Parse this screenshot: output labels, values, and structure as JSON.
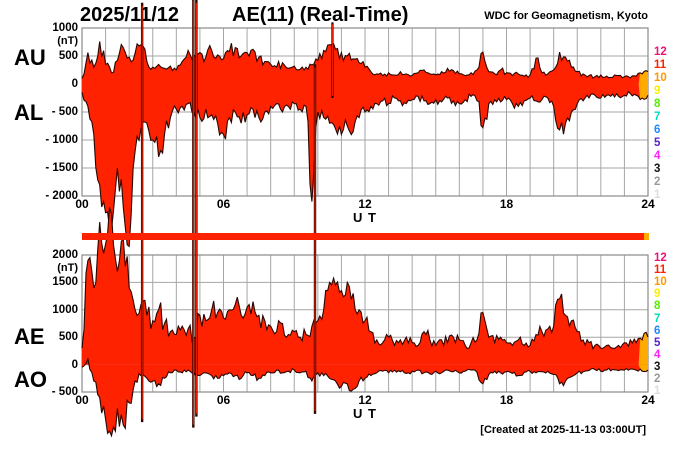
{
  "header": {
    "date": "2025/11/12",
    "title": "AE(11) (Real-Time)",
    "source": "WDC for Geomagnetism, Kyoto"
  },
  "footer": {
    "created": "[Created at 2025-11-13 03:00UT]"
  },
  "colors": {
    "trace_fill": "#ff2200",
    "trace_edge": "#2a0500",
    "recent_fill": "#ffaa00",
    "grid": "#a6a6a6",
    "frame": "#8a8a8a",
    "availability_bar": "#ff2200",
    "availability_bar_tip": "#ffaa00",
    "text": "#000000"
  },
  "stations": [
    {
      "id": "12",
      "color": "#ee1177"
    },
    {
      "id": "11",
      "color": "#ff2200"
    },
    {
      "id": "10",
      "color": "#ff9900"
    },
    {
      "id": "9",
      "color": "#ffee00"
    },
    {
      "id": "8",
      "color": "#55ee00"
    },
    {
      "id": "7",
      "color": "#00ddbb"
    },
    {
      "id": "6",
      "color": "#2288ff"
    },
    {
      "id": "5",
      "color": "#5522cc"
    },
    {
      "id": "4",
      "color": "#ff22ff"
    },
    {
      "id": "3",
      "color": "#111111"
    },
    {
      "id": "2",
      "color": "#999999"
    },
    {
      "id": "1",
      "color": "#dddddd"
    }
  ],
  "chart_data": [
    {
      "type": "area",
      "panel": "upper",
      "ylabel_unit": "(nT)",
      "xlabel": "U T",
      "ylim": [
        -2000,
        1000
      ],
      "yticks": [
        1000,
        500,
        0,
        -500,
        -1000,
        -1500,
        -2000
      ],
      "xticks": [
        {
          "hour": 0,
          "label": "00"
        },
        {
          "hour": 6,
          "label": "06"
        },
        {
          "hour": 12,
          "label": "12"
        },
        {
          "hour": 18,
          "label": "18"
        },
        {
          "hour": 24,
          "label": "24"
        }
      ],
      "x_start_hour": 0,
      "x_step_hours": 0.25,
      "series": [
        {
          "name": "AU",
          "values": [
            100,
            560,
            300,
            760,
            350,
            200,
            420,
            650,
            480,
            550,
            700,
            400,
            300,
            350,
            280,
            320,
            250,
            400,
            600,
            520,
            560,
            480,
            600,
            520,
            450,
            580,
            650,
            500,
            560,
            620,
            480,
            400,
            350,
            300,
            380,
            280,
            320,
            260,
            300,
            340,
            420,
            600,
            700,
            620,
            560,
            500,
            450,
            380,
            300,
            220,
            180,
            150,
            200,
            160,
            220,
            180,
            150,
            200,
            250,
            180,
            160,
            220,
            280,
            240,
            180,
            150,
            200,
            250,
            570,
            220,
            180,
            250,
            200,
            150,
            180,
            140,
            160,
            460,
            200,
            180,
            250,
            570,
            480,
            300,
            220,
            180,
            150,
            130,
            160,
            140,
            120,
            150,
            130,
            110,
            140,
            180,
            220
          ]
        },
        {
          "name": "AL",
          "values": [
            -150,
            -400,
            -900,
            -1800,
            -2300,
            -2600,
            -1500,
            -2200,
            -2900,
            -1200,
            -800,
            -700,
            -1000,
            -1300,
            -900,
            -600,
            -450,
            -400,
            -350,
            -500,
            -600,
            -450,
            -550,
            -700,
            -900,
            -600,
            -500,
            -700,
            -550,
            -450,
            -600,
            -500,
            -400,
            -350,
            -500,
            -400,
            -350,
            -450,
            -400,
            -2100,
            -500,
            -600,
            -700,
            -800,
            -900,
            -750,
            -850,
            -600,
            -500,
            -400,
            -350,
            -300,
            -350,
            -250,
            -300,
            -350,
            -280,
            -220,
            -300,
            -350,
            -280,
            -320,
            -250,
            -300,
            -350,
            -280,
            -220,
            -300,
            -780,
            -350,
            -280,
            -320,
            -280,
            -350,
            -400,
            -300,
            -250,
            -300,
            -280,
            -250,
            -400,
            -820,
            -700,
            -500,
            -350,
            -300,
            -250,
            -200,
            -250,
            -200,
            -180,
            -220,
            -200,
            -170,
            -200,
            -250,
            -200
          ]
        }
      ],
      "spikes": [
        {
          "t": 10.62,
          "hi": 1100,
          "lo": -250
        }
      ]
    },
    {
      "type": "area",
      "panel": "lower",
      "ylabel_unit": "(nT)",
      "xlabel": "U T",
      "ylim": [
        -500,
        2000
      ],
      "yticks": [
        2000,
        1500,
        1000,
        500,
        0,
        -500
      ],
      "xticks": [
        {
          "hour": 0,
          "label": "00"
        },
        {
          "hour": 6,
          "label": "06"
        },
        {
          "hour": 12,
          "label": "12"
        },
        {
          "hour": 18,
          "label": "18"
        },
        {
          "hour": 24,
          "label": "24"
        }
      ],
      "x_start_hour": 0,
      "x_step_hours": 0.25,
      "series": [
        {
          "name": "AE",
          "values": [
            300,
            1900,
            1400,
            2600,
            2200,
            2750,
            1700,
            2300,
            1400,
            1000,
            1100,
            900,
            800,
            1000,
            750,
            600,
            550,
            700,
            650,
            500,
            900,
            800,
            1000,
            950,
            850,
            1000,
            1100,
            900,
            1050,
            1150,
            900,
            800,
            700,
            600,
            750,
            550,
            600,
            500,
            550,
            700,
            800,
            1000,
            1500,
            1450,
            1350,
            1500,
            1300,
            1000,
            800,
            600,
            450,
            400,
            500,
            350,
            450,
            500,
            400,
            350,
            600,
            450,
            350,
            450,
            400,
            500,
            450,
            350,
            400,
            450,
            950,
            500,
            400,
            500,
            400,
            350,
            450,
            350,
            350,
            550,
            600,
            650,
            700,
            1200,
            900,
            800,
            600,
            450,
            400,
            350,
            300,
            350,
            300,
            350,
            400,
            450,
            400,
            450,
            500
          ]
        },
        {
          "name": "AO",
          "values": [
            -50,
            100,
            -300,
            -600,
            -1000,
            -1300,
            -800,
            -1100,
            -700,
            -300,
            -200,
            -250,
            -300,
            -350,
            -250,
            -150,
            -100,
            -150,
            -100,
            -150,
            -200,
            -150,
            -200,
            -250,
            -200,
            -150,
            -200,
            -250,
            -150,
            -200,
            -250,
            -200,
            -150,
            -100,
            -150,
            -120,
            -100,
            -150,
            -120,
            -300,
            -150,
            -200,
            -250,
            -300,
            -400,
            -350,
            -450,
            -300,
            -250,
            -200,
            -150,
            -120,
            -150,
            -100,
            -130,
            -160,
            -120,
            -100,
            -150,
            -170,
            -120,
            -150,
            -100,
            -130,
            -150,
            -120,
            -100,
            -140,
            -350,
            -180,
            -120,
            -150,
            -130,
            -160,
            -200,
            -140,
            -120,
            -150,
            -130,
            -120,
            -180,
            -350,
            -300,
            -220,
            -150,
            -130,
            -110,
            -90,
            -120,
            -100,
            -90,
            -110,
            -100,
            -80,
            -100,
            -120,
            -100
          ]
        }
      ],
      "spikes": []
    }
  ],
  "glitch_spikes": [
    {
      "t": 2.55,
      "top_value": 1450,
      "bottom_value": -1050
    },
    {
      "t": 4.72,
      "top_value": 1550,
      "bottom_value": -1150
    },
    {
      "t": 4.85,
      "top_value": 1500,
      "bottom_value": -950
    },
    {
      "t": 9.88,
      "top_value": 350,
      "bottom_value": -900
    }
  ]
}
